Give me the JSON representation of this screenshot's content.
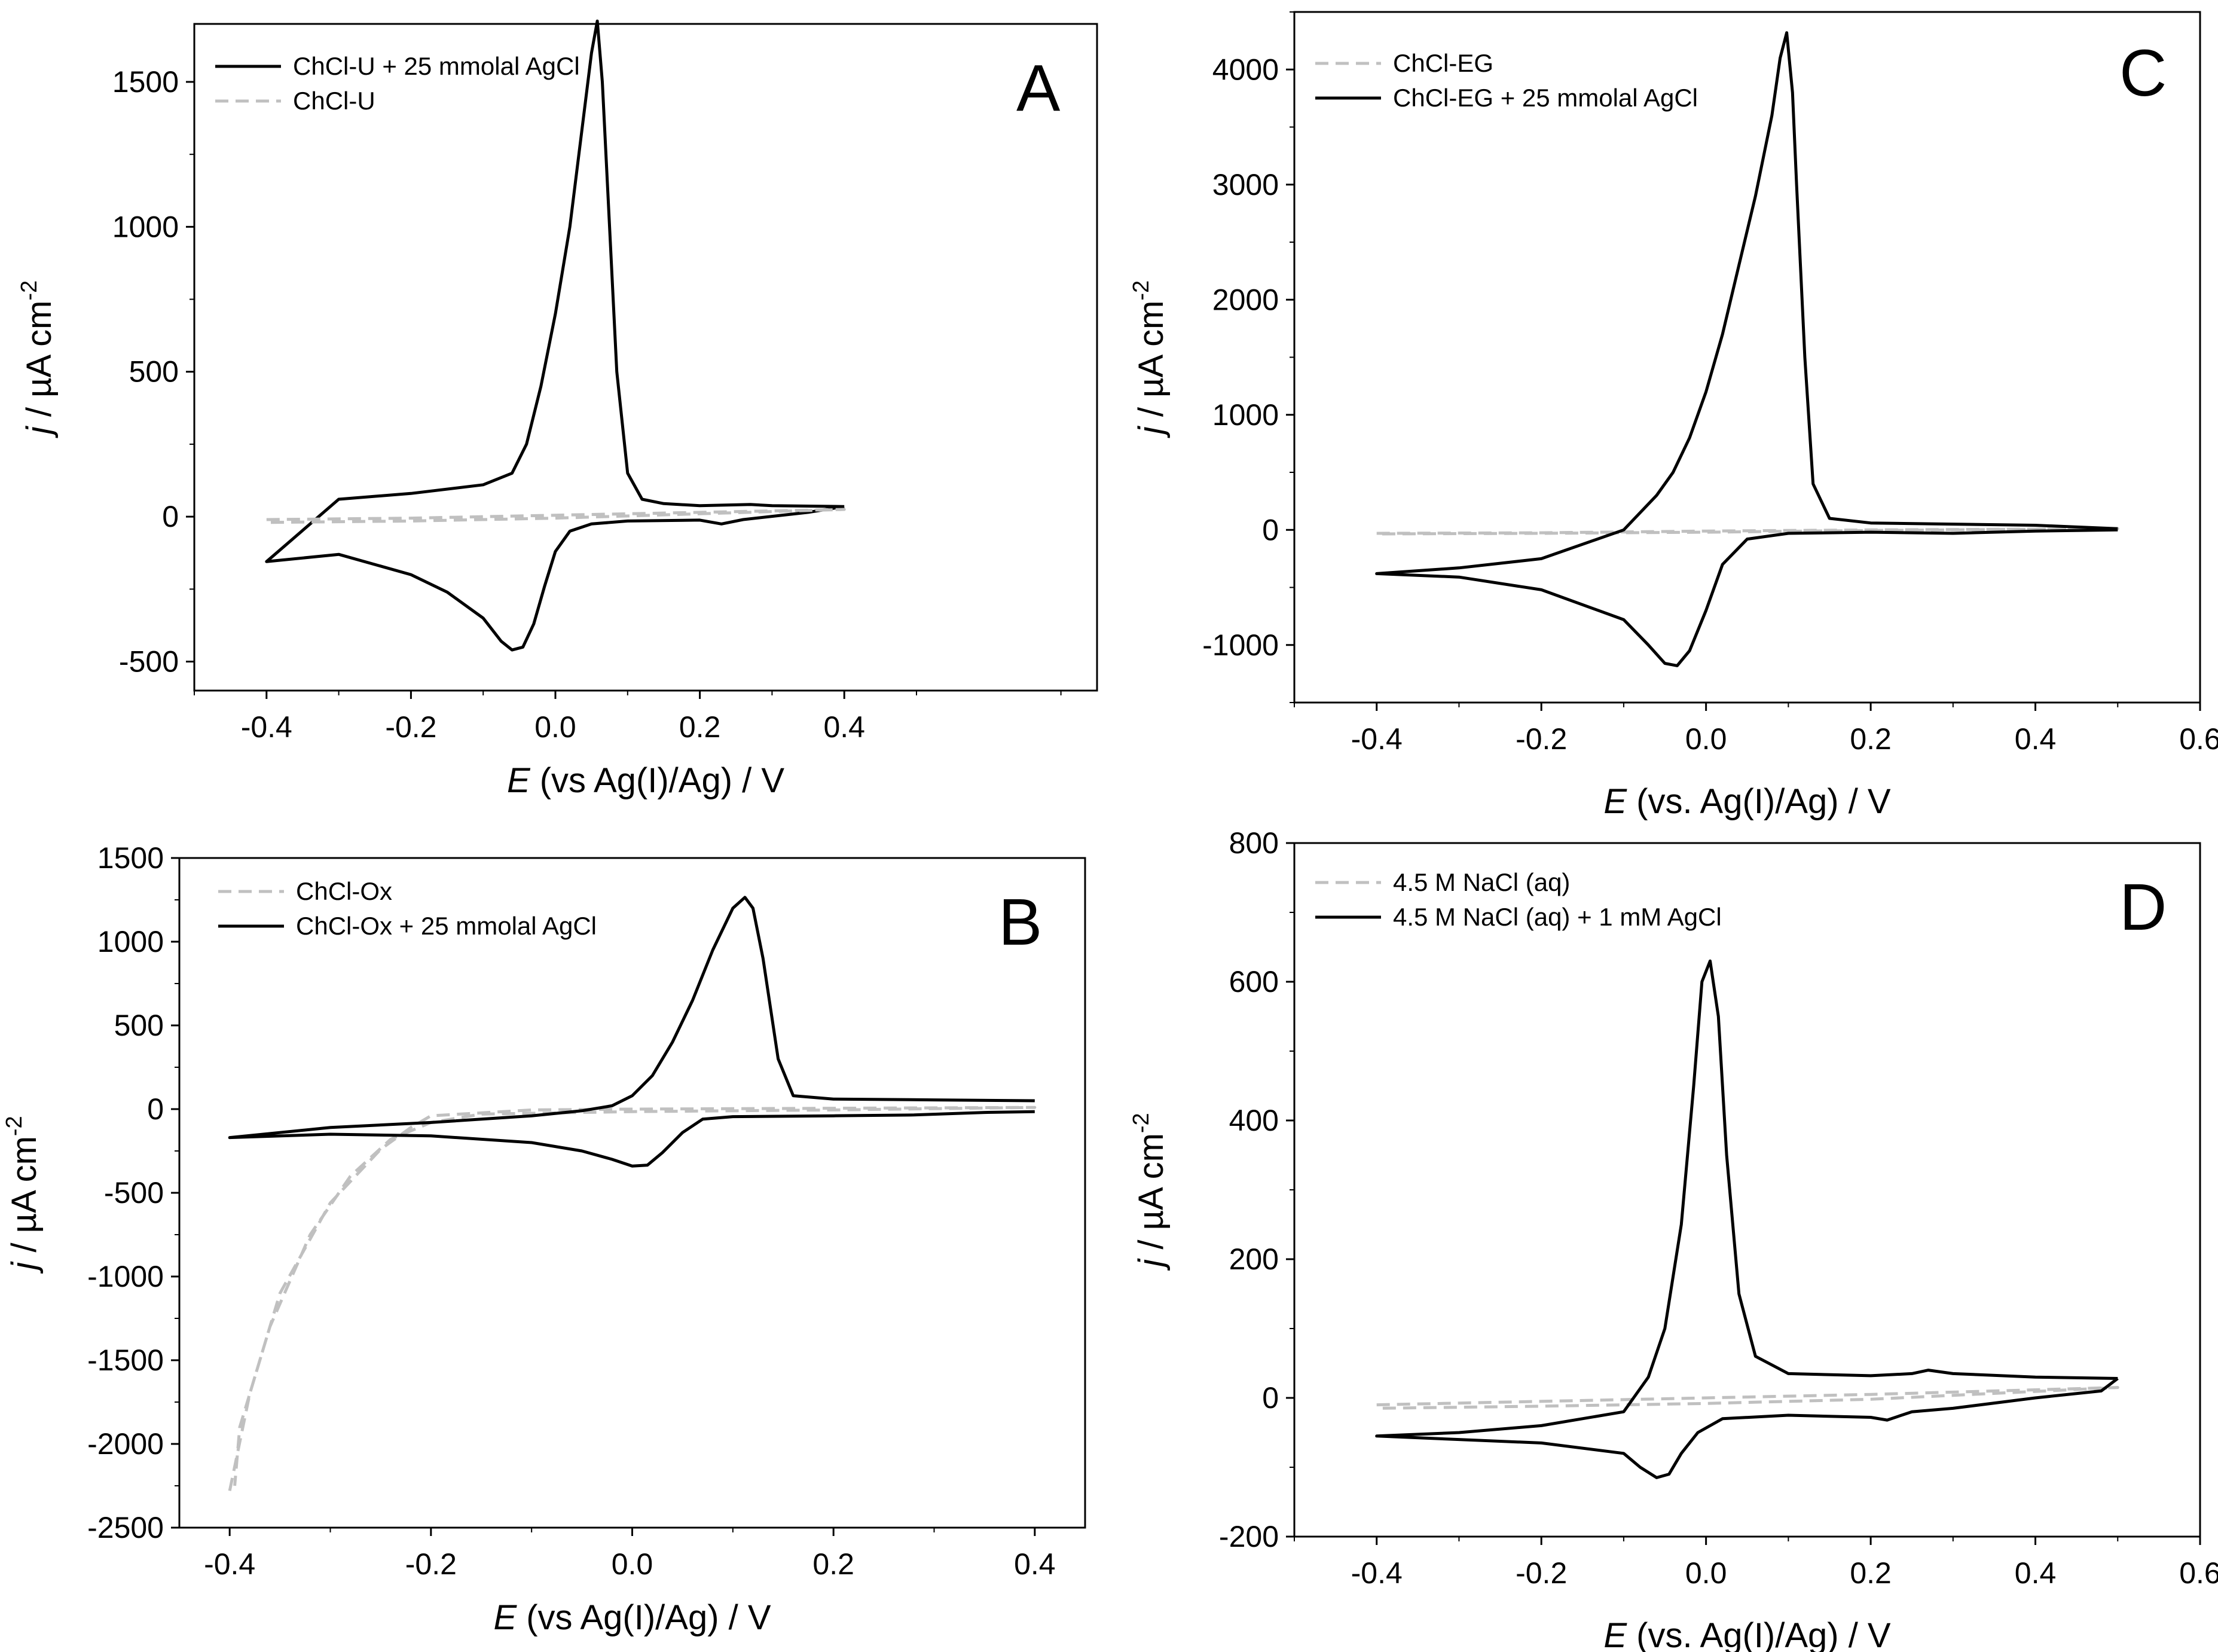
{
  "figure": {
    "description_panels": [
      "A",
      "B",
      "C",
      "D"
    ]
  },
  "chart_data": [
    {
      "panel": "A",
      "type": "line",
      "xlabel_italic": "E",
      "xlabel_rest": " (vs Ag(I)/Ag) / V",
      "ylabel_italic": "j",
      "ylabel_rest": " / µA cm",
      "ylabel_sup": "-2",
      "xlim": [
        -0.5,
        0.75
      ],
      "ylim": [
        -600,
        1700
      ],
      "xticks": [
        -0.4,
        -0.2,
        0.0,
        0.2,
        0.4
      ],
      "xtick_labels": [
        "-0.4",
        "-0.2",
        "0.0",
        "0.2",
        "0.4"
      ],
      "yticks": [
        -500,
        0,
        500,
        1000,
        1500
      ],
      "ytick_labels": [
        "-500",
        "0",
        "500",
        "1000",
        "1500"
      ],
      "legend_position": "top-left",
      "series": [
        {
          "name": "ChCl-U + 25 mmolal AgCl",
          "style": "solid",
          "color": "#000000",
          "points": [
            [
              0.4,
              35
            ],
            [
              0.3,
              38
            ],
            [
              0.27,
              42
            ],
            [
              0.2,
              38
            ],
            [
              0.15,
              45
            ],
            [
              0.12,
              60
            ],
            [
              0.1,
              150
            ],
            [
              0.085,
              500
            ],
            [
              0.075,
              1000
            ],
            [
              0.065,
              1500
            ],
            [
              0.058,
              1710
            ],
            [
              0.05,
              1600
            ],
            [
              0.035,
              1300
            ],
            [
              0.02,
              1000
            ],
            [
              0.0,
              700
            ],
            [
              -0.02,
              450
            ],
            [
              -0.04,
              250
            ],
            [
              -0.06,
              150
            ],
            [
              -0.1,
              110
            ],
            [
              -0.2,
              80
            ],
            [
              -0.3,
              60
            ],
            [
              -0.4,
              -155
            ],
            [
              -0.3,
              -130
            ],
            [
              -0.2,
              -200
            ],
            [
              -0.15,
              -260
            ],
            [
              -0.1,
              -350
            ],
            [
              -0.075,
              -430
            ],
            [
              -0.06,
              -460
            ],
            [
              -0.045,
              -450
            ],
            [
              -0.03,
              -370
            ],
            [
              -0.015,
              -240
            ],
            [
              0.0,
              -120
            ],
            [
              0.02,
              -50
            ],
            [
              0.05,
              -25
            ],
            [
              0.1,
              -15
            ],
            [
              0.2,
              -12
            ],
            [
              0.23,
              -25
            ],
            [
              0.26,
              -10
            ],
            [
              0.35,
              15
            ],
            [
              0.4,
              35
            ]
          ]
        },
        {
          "name": "ChCl-U",
          "style": "dashed",
          "color": "#c0c0c0",
          "points": [
            [
              -0.4,
              -10
            ],
            [
              -0.2,
              -5
            ],
            [
              0.0,
              5
            ],
            [
              0.2,
              15
            ],
            [
              0.4,
              25
            ],
            [
              0.2,
              10
            ],
            [
              0.0,
              -5
            ],
            [
              -0.2,
              -15
            ],
            [
              -0.4,
              -20
            ]
          ]
        }
      ],
      "panel_label": "A"
    },
    {
      "panel": "B",
      "type": "line",
      "xlabel_italic": "E",
      "xlabel_rest": " (vs Ag(I)/Ag) / V",
      "ylabel_italic": "j",
      "ylabel_rest": " / µA cm",
      "ylabel_sup": "-2",
      "xlim": [
        -0.45,
        0.45
      ],
      "ylim": [
        -2500,
        1500
      ],
      "xticks": [
        -0.4,
        -0.2,
        0.0,
        0.2,
        0.4
      ],
      "xtick_labels": [
        "-0.4",
        "-0.2",
        "0.0",
        "0.2",
        "0.4"
      ],
      "yticks": [
        -2500,
        -2000,
        -1500,
        -1000,
        -500,
        0,
        500,
        1000,
        1500
      ],
      "ytick_labels": [
        "-2500",
        "-2000",
        "-1500",
        "-1000",
        "-500",
        "0",
        "500",
        "1000",
        "1500"
      ],
      "legend_position": "top-left",
      "series": [
        {
          "name": "ChCl-Ox",
          "style": "dashed",
          "color": "#c0c0c0",
          "points": [
            [
              -0.4,
              -2280
            ],
            [
              -0.38,
              -1700
            ],
            [
              -0.35,
              -1100
            ],
            [
              -0.3,
              -560
            ],
            [
              -0.25,
              -240
            ],
            [
              -0.22,
              -110
            ],
            [
              -0.2,
              -40
            ],
            [
              -0.1,
              -5
            ],
            [
              0.0,
              0
            ],
            [
              0.2,
              5
            ],
            [
              0.4,
              10
            ],
            [
              0.2,
              -5
            ],
            [
              0.0,
              -15
            ],
            [
              -0.15,
              -30
            ],
            [
              -0.2,
              -80
            ],
            [
              -0.24,
              -180
            ],
            [
              -0.28,
              -400
            ],
            [
              -0.32,
              -750
            ],
            [
              -0.36,
              -1300
            ],
            [
              -0.39,
              -1900
            ],
            [
              -0.395,
              -2250
            ]
          ]
        },
        {
          "name": "ChCl-Ox + 25 mmolal AgCl",
          "style": "solid",
          "color": "#000000",
          "points": [
            [
              0.4,
              50
            ],
            [
              0.3,
              55
            ],
            [
              0.2,
              60
            ],
            [
              0.16,
              80
            ],
            [
              0.145,
              300
            ],
            [
              0.13,
              900
            ],
            [
              0.12,
              1200
            ],
            [
              0.112,
              1265
            ],
            [
              0.1,
              1200
            ],
            [
              0.08,
              950
            ],
            [
              0.06,
              650
            ],
            [
              0.04,
              400
            ],
            [
              0.02,
              200
            ],
            [
              0.0,
              80
            ],
            [
              -0.02,
              20
            ],
            [
              -0.05,
              -10
            ],
            [
              -0.1,
              -40
            ],
            [
              -0.2,
              -80
            ],
            [
              -0.3,
              -110
            ],
            [
              -0.4,
              -170
            ],
            [
              -0.3,
              -150
            ],
            [
              -0.2,
              -160
            ],
            [
              -0.1,
              -200
            ],
            [
              -0.05,
              -250
            ],
            [
              -0.02,
              -300
            ],
            [
              0.0,
              -340
            ],
            [
              0.015,
              -335
            ],
            [
              0.03,
              -260
            ],
            [
              0.05,
              -140
            ],
            [
              0.07,
              -60
            ],
            [
              0.1,
              -45
            ],
            [
              0.2,
              -40
            ],
            [
              0.28,
              -35
            ],
            [
              0.35,
              -20
            ],
            [
              0.4,
              -15
            ]
          ]
        }
      ],
      "panel_label": "B"
    },
    {
      "panel": "C",
      "type": "line",
      "xlabel_italic": "E",
      "xlabel_rest": " (vs. Ag(I)/Ag) / V",
      "ylabel_italic": "j",
      "ylabel_rest": " / µA cm",
      "ylabel_sup": "-2",
      "xlim": [
        -0.5,
        0.6
      ],
      "ylim": [
        -1500,
        4500
      ],
      "xticks": [
        -0.4,
        -0.2,
        0.0,
        0.2,
        0.4,
        0.6
      ],
      "xtick_labels": [
        "-0.4",
        "-0.2",
        "0.0",
        "0.2",
        "0.4",
        "0.6"
      ],
      "yticks": [
        -1000,
        0,
        1000,
        2000,
        3000,
        4000
      ],
      "ytick_labels": [
        "-1000",
        "0",
        "1000",
        "2000",
        "3000",
        "4000"
      ],
      "legend_position": "top-left",
      "series": [
        {
          "name": "ChCl-EG",
          "style": "dashed",
          "color": "#c0c0c0",
          "points": [
            [
              -0.4,
              -30
            ],
            [
              -0.2,
              -25
            ],
            [
              0.0,
              -10
            ],
            [
              0.2,
              0
            ],
            [
              0.5,
              10
            ],
            [
              0.2,
              -5
            ],
            [
              0.0,
              -20
            ],
            [
              -0.2,
              -30
            ],
            [
              -0.4,
              -35
            ]
          ]
        },
        {
          "name": "ChCl-EG + 25 mmolal AgCl",
          "style": "solid",
          "color": "#000000",
          "points": [
            [
              0.5,
              10
            ],
            [
              0.4,
              40
            ],
            [
              0.2,
              60
            ],
            [
              0.15,
              100
            ],
            [
              0.13,
              400
            ],
            [
              0.12,
              1500
            ],
            [
              0.11,
              3000
            ],
            [
              0.105,
              3800
            ],
            [
              0.098,
              4320
            ],
            [
              0.09,
              4100
            ],
            [
              0.08,
              3600
            ],
            [
              0.06,
              2900
            ],
            [
              0.04,
              2300
            ],
            [
              0.02,
              1700
            ],
            [
              0.0,
              1200
            ],
            [
              -0.02,
              800
            ],
            [
              -0.04,
              500
            ],
            [
              -0.06,
              300
            ],
            [
              -0.1,
              0
            ],
            [
              -0.2,
              -250
            ],
            [
              -0.3,
              -330
            ],
            [
              -0.4,
              -380
            ],
            [
              -0.3,
              -410
            ],
            [
              -0.2,
              -520
            ],
            [
              -0.1,
              -780
            ],
            [
              -0.07,
              -1000
            ],
            [
              -0.05,
              -1160
            ],
            [
              -0.035,
              -1180
            ],
            [
              -0.02,
              -1050
            ],
            [
              0.0,
              -700
            ],
            [
              0.02,
              -300
            ],
            [
              0.05,
              -80
            ],
            [
              0.1,
              -30
            ],
            [
              0.2,
              -20
            ],
            [
              0.3,
              -30
            ],
            [
              0.4,
              -10
            ],
            [
              0.5,
              0
            ]
          ]
        }
      ],
      "panel_label": "C"
    },
    {
      "panel": "D",
      "type": "line",
      "xlabel_italic": "E",
      "xlabel_rest": " (vs. Ag(I)/Ag) / V",
      "ylabel_italic": "j",
      "ylabel_rest": " / µA cm",
      "ylabel_sup": "-2",
      "xlim": [
        -0.5,
        0.6
      ],
      "ylim": [
        -200,
        800
      ],
      "xticks": [
        -0.4,
        -0.2,
        0.0,
        0.2,
        0.4,
        0.6
      ],
      "xtick_labels": [
        "-0.4",
        "-0.2",
        "0.0",
        "0.2",
        "0.4",
        "0.6"
      ],
      "yticks": [
        -200,
        0,
        200,
        400,
        600,
        800
      ],
      "ytick_labels": [
        "-200",
        "0",
        "200",
        "400",
        "600",
        "800"
      ],
      "legend_position": "top-left",
      "series": [
        {
          "name": "4.5 M NaCl (aq)",
          "style": "dashed",
          "color": "#c0c0c0",
          "points": [
            [
              -0.4,
              -10
            ],
            [
              -0.2,
              -5
            ],
            [
              0.0,
              0
            ],
            [
              0.2,
              5
            ],
            [
              0.5,
              15
            ],
            [
              0.2,
              -2
            ],
            [
              0.0,
              -8
            ],
            [
              -0.2,
              -12
            ],
            [
              -0.4,
              -15
            ]
          ]
        },
        {
          "name": "4.5 M NaCl (aq) + 1 mM AgCl",
          "style": "solid",
          "color": "#000000",
          "points": [
            [
              0.5,
              28
            ],
            [
              0.4,
              30
            ],
            [
              0.3,
              35
            ],
            [
              0.27,
              40
            ],
            [
              0.25,
              35
            ],
            [
              0.2,
              32
            ],
            [
              0.1,
              35
            ],
            [
              0.06,
              60
            ],
            [
              0.04,
              150
            ],
            [
              0.025,
              350
            ],
            [
              0.015,
              550
            ],
            [
              0.005,
              630
            ],
            [
              -0.005,
              600
            ],
            [
              -0.015,
              450
            ],
            [
              -0.03,
              250
            ],
            [
              -0.05,
              100
            ],
            [
              -0.07,
              30
            ],
            [
              -0.1,
              -20
            ],
            [
              -0.2,
              -40
            ],
            [
              -0.3,
              -50
            ],
            [
              -0.4,
              -55
            ],
            [
              -0.3,
              -60
            ],
            [
              -0.2,
              -65
            ],
            [
              -0.1,
              -80
            ],
            [
              -0.08,
              -100
            ],
            [
              -0.06,
              -115
            ],
            [
              -0.045,
              -110
            ],
            [
              -0.03,
              -80
            ],
            [
              -0.01,
              -50
            ],
            [
              0.02,
              -30
            ],
            [
              0.1,
              -25
            ],
            [
              0.2,
              -28
            ],
            [
              0.22,
              -32
            ],
            [
              0.25,
              -20
            ],
            [
              0.3,
              -15
            ],
            [
              0.4,
              0
            ],
            [
              0.48,
              10
            ],
            [
              0.5,
              28
            ]
          ]
        }
      ],
      "panel_label": "D"
    }
  ]
}
